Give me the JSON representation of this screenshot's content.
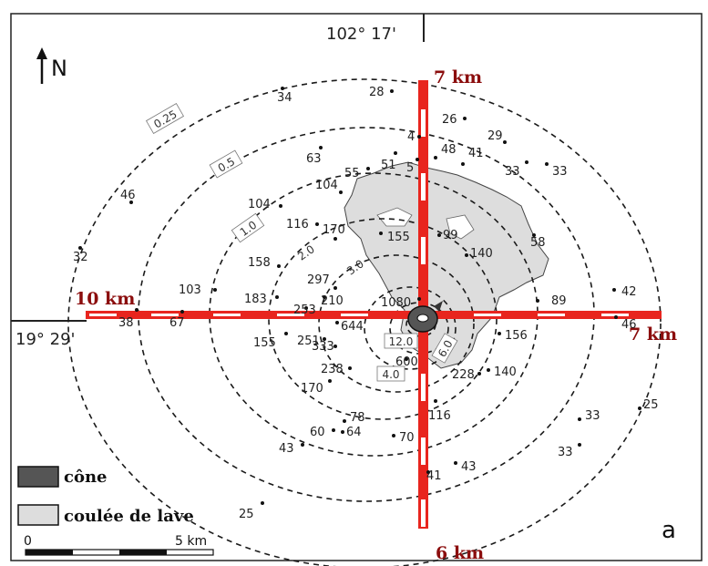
{
  "map": {
    "north_label": "N",
    "longitude_label": "102° 17'",
    "latitude_label": "19° 29'",
    "panel_letter": "a"
  },
  "axes": {
    "north": "7 km",
    "south": "6 km",
    "west": "10 km",
    "east": "7 km"
  },
  "isopach_labels": [
    "0.25",
    "0.5",
    "1.0",
    "2.0",
    "3.0",
    "4.0",
    "6.0",
    "12.0"
  ],
  "samples": [
    "34",
    "28",
    "26",
    "29",
    "4",
    "48",
    "41",
    "33",
    "33",
    "63",
    "51",
    "5",
    "55",
    "104",
    "46",
    "104",
    "116",
    "170",
    "155",
    "99",
    "140",
    "58",
    "32",
    "158",
    "2.0",
    "297",
    "3.0",
    "103",
    "183",
    "210",
    "253",
    "1080",
    "89",
    "42",
    "38",
    "67",
    "644",
    "156",
    "46",
    "155",
    "251",
    "333",
    "12.0",
    "6.0",
    "600",
    "238",
    "228",
    "140",
    "170",
    "4.0",
    "116",
    "78",
    "60",
    "64",
    "70",
    "33",
    "25",
    "43",
    "33",
    "43",
    "41",
    "25"
  ],
  "legend": {
    "cone_label": "cône",
    "lava_label": "coulée de lave",
    "colors": {
      "cone": "#555555",
      "lava": "#dddddd"
    }
  },
  "scale_bar": {
    "start": "0",
    "end": "5 km"
  }
}
